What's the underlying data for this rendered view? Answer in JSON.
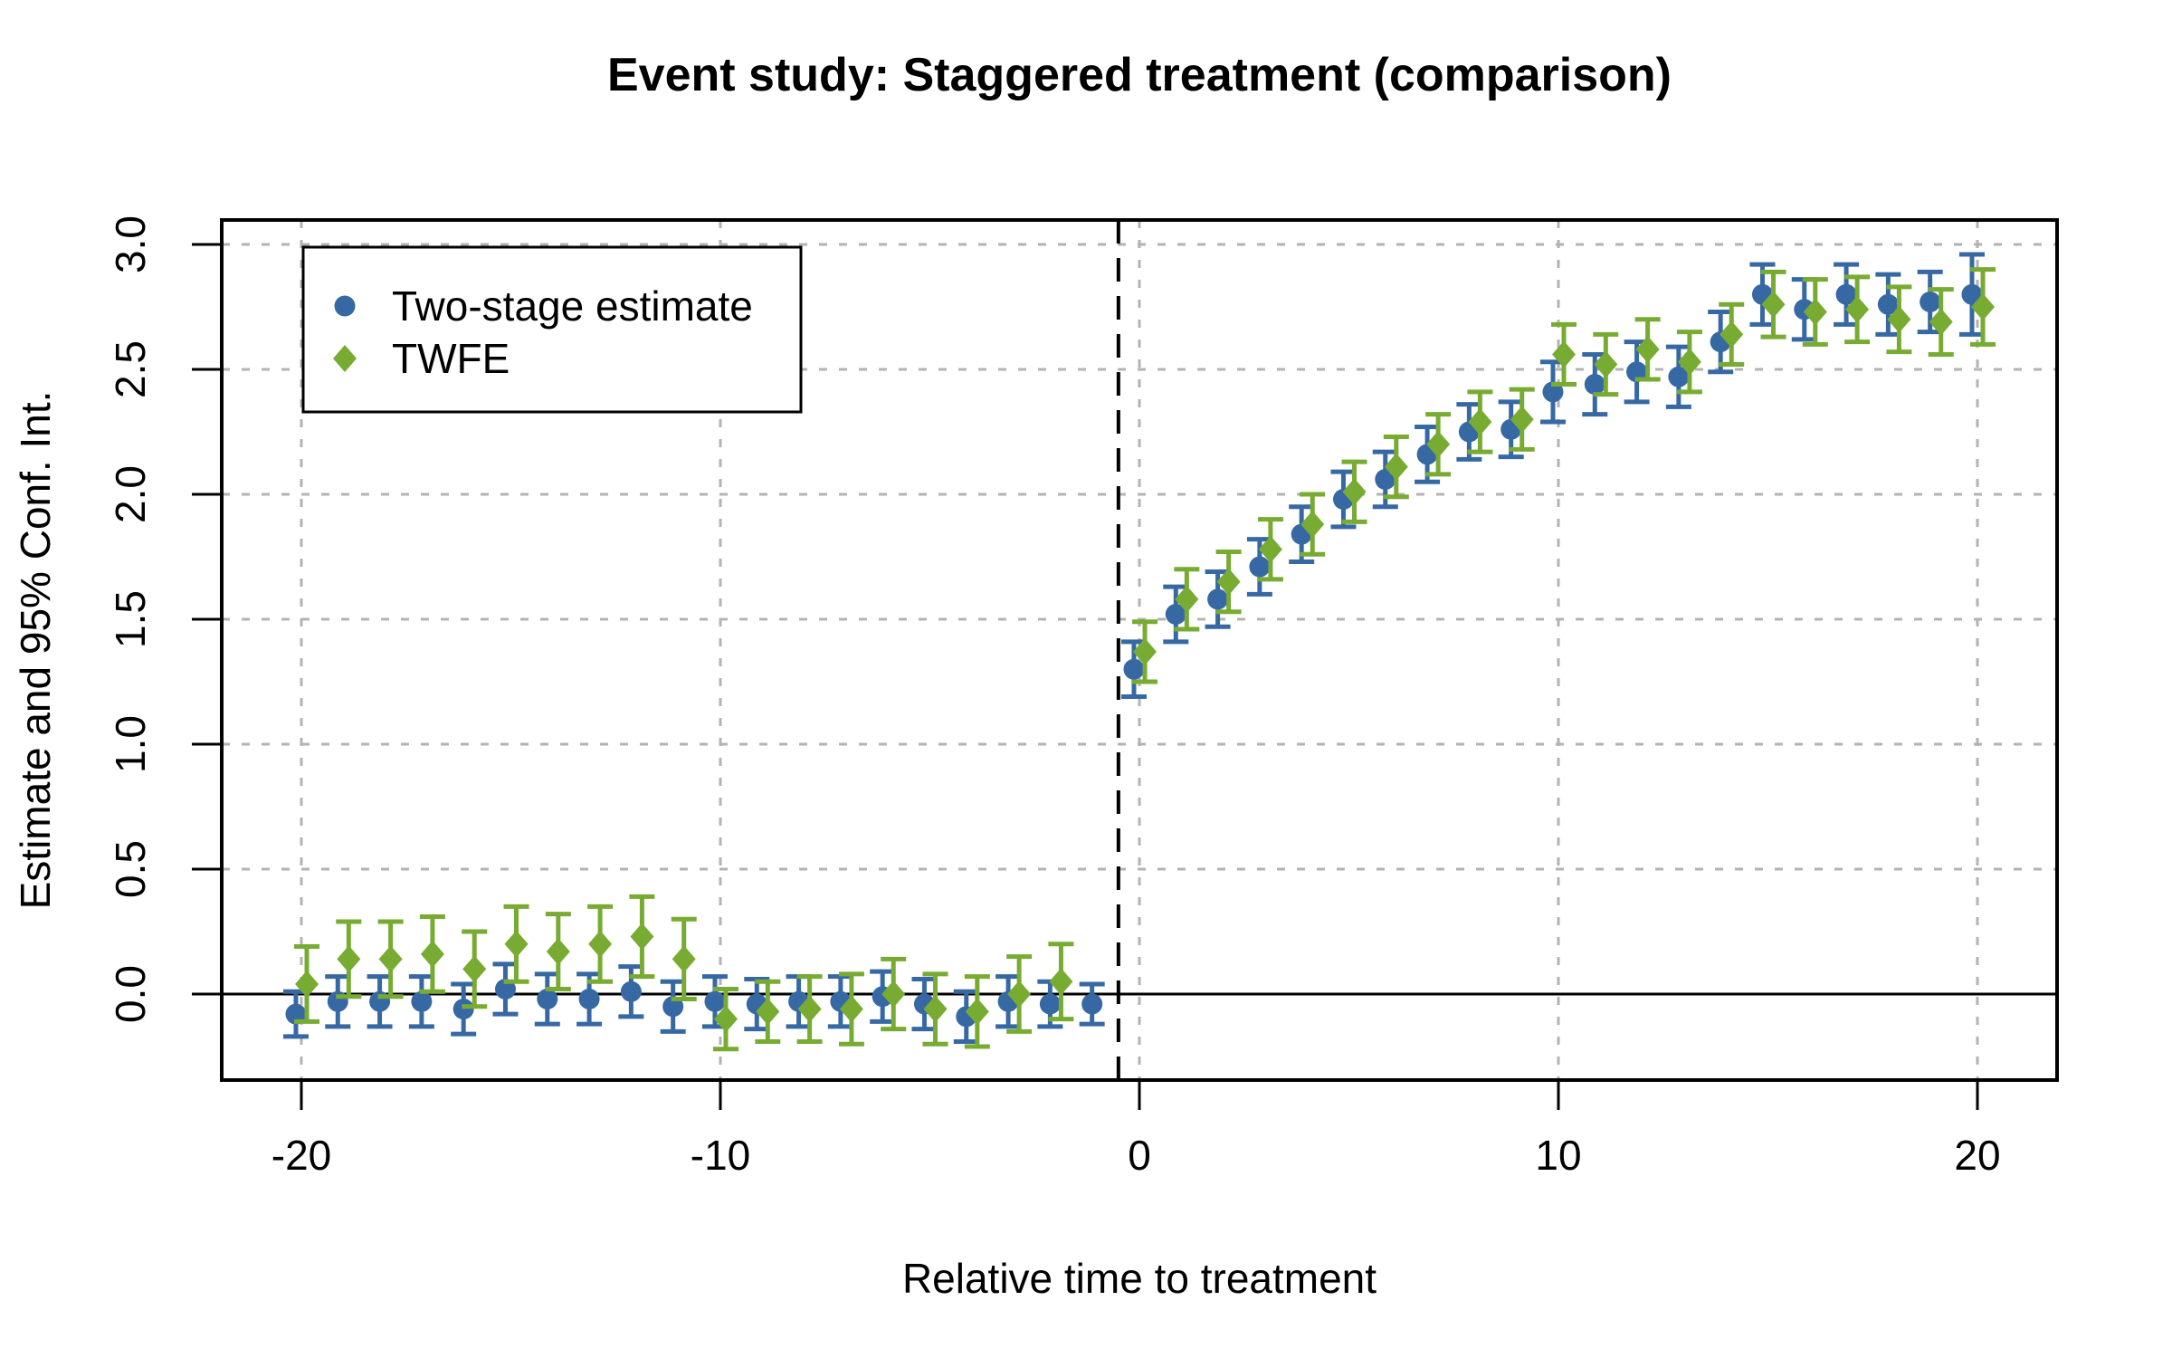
{
  "chart_data": {
    "type": "scatter",
    "title": "Event study: Staggered treatment (comparison)",
    "xlabel": "Relative time to treatment",
    "ylabel": "Estimate and 95% Conf. Int.",
    "xlim": [
      -21.9,
      21.9
    ],
    "ylim": [
      -0.34,
      3.1
    ],
    "grid": true,
    "grid_color": "#b3b3b3",
    "x_ticks": [
      -20,
      -10,
      0,
      10,
      20
    ],
    "x_tick_labels": [
      "-20",
      "-10",
      "0",
      "10",
      "20"
    ],
    "y_ticks": [
      0.0,
      0.5,
      1.0,
      1.5,
      2.0,
      2.5,
      3.0
    ],
    "y_tick_labels": [
      "0.0",
      "0.5",
      "1.0",
      "1.5",
      "2.0",
      "2.5",
      "3.0"
    ],
    "reference_lines": {
      "horizontal_solid_y": 0,
      "vertical_dashed_x": -0.5
    },
    "legend_position": "top-left",
    "series": [
      {
        "name": "Two-stage estimate",
        "marker": "circle",
        "color": "#3669A4",
        "x_dodge": -0.13,
        "x": [
          -20,
          -19,
          -18,
          -17,
          -16,
          -15,
          -14,
          -13,
          -12,
          -11,
          -10,
          -9,
          -8,
          -7,
          -6,
          -5,
          -4,
          -3,
          -2,
          -1,
          0,
          1,
          2,
          3,
          4,
          5,
          6,
          7,
          8,
          9,
          10,
          11,
          12,
          13,
          14,
          15,
          16,
          17,
          18,
          19,
          20
        ],
        "y": [
          -0.08,
          -0.03,
          -0.03,
          -0.03,
          -0.06,
          0.02,
          -0.02,
          -0.02,
          0.01,
          -0.05,
          -0.03,
          -0.04,
          -0.03,
          -0.03,
          -0.01,
          -0.04,
          -0.09,
          -0.03,
          -0.04,
          -0.04,
          1.3,
          1.52,
          1.58,
          1.71,
          1.84,
          1.98,
          2.06,
          2.16,
          2.25,
          2.26,
          2.41,
          2.44,
          2.49,
          2.47,
          2.61,
          2.8,
          2.74,
          2.8,
          2.76,
          2.77,
          2.8
        ],
        "ci_low": [
          -0.17,
          -0.13,
          -0.13,
          -0.13,
          -0.16,
          -0.08,
          -0.12,
          -0.12,
          -0.09,
          -0.15,
          -0.13,
          -0.14,
          -0.13,
          -0.13,
          -0.11,
          -0.14,
          -0.19,
          -0.13,
          -0.13,
          -0.12,
          1.19,
          1.41,
          1.47,
          1.6,
          1.73,
          1.87,
          1.95,
          2.05,
          2.14,
          2.15,
          2.29,
          2.32,
          2.37,
          2.35,
          2.49,
          2.68,
          2.62,
          2.68,
          2.64,
          2.65,
          2.64
        ],
        "ci_high": [
          0.01,
          0.07,
          0.07,
          0.07,
          0.04,
          0.12,
          0.08,
          0.08,
          0.11,
          0.05,
          0.07,
          0.06,
          0.07,
          0.07,
          0.09,
          0.06,
          0.01,
          0.07,
          0.05,
          0.04,
          1.41,
          1.63,
          1.69,
          1.82,
          1.95,
          2.09,
          2.17,
          2.27,
          2.36,
          2.37,
          2.53,
          2.56,
          2.61,
          2.59,
          2.73,
          2.92,
          2.86,
          2.92,
          2.88,
          2.89,
          2.96
        ]
      },
      {
        "name": "TWFE",
        "marker": "diamond",
        "color": "#77AB31",
        "x_dodge": 0.13,
        "x": [
          -20,
          -19,
          -18,
          -17,
          -16,
          -15,
          -14,
          -13,
          -12,
          -11,
          -10,
          -9,
          -8,
          -7,
          -6,
          -5,
          -4,
          -3,
          -2,
          0,
          1,
          2,
          3,
          4,
          5,
          6,
          7,
          8,
          9,
          10,
          11,
          12,
          13,
          14,
          15,
          16,
          17,
          18,
          19,
          20
        ],
        "y": [
          0.04,
          0.14,
          0.14,
          0.16,
          0.1,
          0.2,
          0.17,
          0.2,
          0.23,
          0.14,
          -0.1,
          -0.07,
          -0.06,
          -0.06,
          0.0,
          -0.06,
          -0.07,
          0.0,
          0.05,
          1.37,
          1.58,
          1.65,
          1.78,
          1.88,
          2.01,
          2.11,
          2.2,
          2.29,
          2.3,
          2.56,
          2.52,
          2.58,
          2.53,
          2.64,
          2.76,
          2.73,
          2.74,
          2.7,
          2.69,
          2.75
        ],
        "ci_low": [
          -0.11,
          -0.01,
          -0.01,
          0.01,
          -0.05,
          0.05,
          0.02,
          0.05,
          0.07,
          -0.02,
          -0.22,
          -0.19,
          -0.19,
          -0.2,
          -0.14,
          -0.2,
          -0.21,
          -0.15,
          -0.1,
          1.25,
          1.46,
          1.53,
          1.66,
          1.76,
          1.89,
          1.99,
          2.08,
          2.17,
          2.18,
          2.44,
          2.4,
          2.46,
          2.41,
          2.52,
          2.63,
          2.6,
          2.61,
          2.57,
          2.56,
          2.6
        ],
        "ci_high": [
          0.19,
          0.29,
          0.29,
          0.31,
          0.25,
          0.35,
          0.32,
          0.35,
          0.39,
          0.3,
          0.02,
          0.05,
          0.07,
          0.08,
          0.14,
          0.08,
          0.07,
          0.15,
          0.2,
          1.49,
          1.7,
          1.77,
          1.9,
          2.0,
          2.13,
          2.23,
          2.32,
          2.41,
          2.42,
          2.68,
          2.64,
          2.7,
          2.65,
          2.76,
          2.89,
          2.86,
          2.87,
          2.83,
          2.82,
          2.9
        ]
      }
    ]
  }
}
